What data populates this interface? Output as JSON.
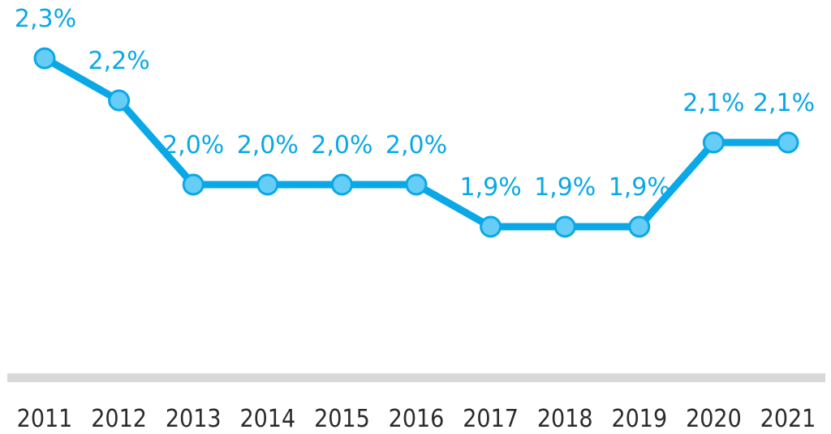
{
  "chart_data": {
    "type": "line",
    "title": "",
    "xlabel": "",
    "ylabel": "",
    "categories": [
      "2011",
      "2012",
      "2013",
      "2014",
      "2015",
      "2016",
      "2017",
      "2018",
      "2019",
      "2020",
      "2021"
    ],
    "series": [
      {
        "values": [
          2.3,
          2.2,
          2.0,
          2.0,
          2.0,
          2.0,
          1.9,
          1.9,
          1.9,
          2.1,
          2.1
        ],
        "labels": [
          "2,3%",
          "2,2%",
          "2,0%",
          "2,0%",
          "2,0%",
          "2,0%",
          "1,9%",
          "1,9%",
          "1,9%",
          "2,1%",
          "2,1%"
        ]
      }
    ],
    "grid": false,
    "colors": {
      "line": "#0aa8e6",
      "marker_fill": "#66cdf7",
      "marker_stroke": "#0aa8e6",
      "data_label": "#0aa8e6",
      "axis_bar": "#d9d9d9",
      "tick_label": "#2b2b2b"
    }
  }
}
